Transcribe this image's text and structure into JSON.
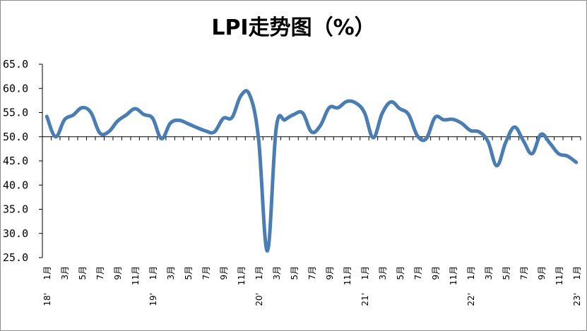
{
  "chart_data": {
    "type": "line",
    "title": "LPI走势图（%）",
    "ylim": [
      25.0,
      65.0
    ],
    "yticks": [
      "65.0",
      "60.0",
      "55.0",
      "50.0",
      "45.0",
      "40.0",
      "35.0",
      "30.0",
      "25.0"
    ],
    "reference_line": 50.0,
    "grid": false,
    "legend": "none",
    "line_color": "#4a7eb2",
    "x": [
      "18'1月",
      "2月",
      "3月",
      "4月",
      "5月",
      "6月",
      "7月",
      "8月",
      "9月",
      "10月",
      "11月",
      "12月",
      "19'1月",
      "2月",
      "3月",
      "4月",
      "5月",
      "6月",
      "7月",
      "8月",
      "9月",
      "10月",
      "11月",
      "12月",
      "20'1月",
      "2月",
      "3月",
      "4月",
      "5月",
      "6月",
      "7月",
      "8月",
      "9月",
      "10月",
      "11月",
      "12月",
      "21'1月",
      "2月",
      "3月",
      "4月",
      "5月",
      "6月",
      "7月",
      "8月",
      "9月",
      "10月",
      "11月",
      "12月",
      "22'1月",
      "2月",
      "3月",
      "4月",
      "5月",
      "6月",
      "7月",
      "8月",
      "9月",
      "10月",
      "11月",
      "12月",
      "23'1月"
    ],
    "xticks": [
      {
        "index": 0,
        "label": "1月",
        "year": "18'"
      },
      {
        "index": 2,
        "label": "3月"
      },
      {
        "index": 4,
        "label": "5月"
      },
      {
        "index": 6,
        "label": "7月"
      },
      {
        "index": 8,
        "label": "9月"
      },
      {
        "index": 10,
        "label": "11月"
      },
      {
        "index": 12,
        "label": "1月",
        "year": "19'"
      },
      {
        "index": 14,
        "label": "3月"
      },
      {
        "index": 16,
        "label": "5月"
      },
      {
        "index": 18,
        "label": "7月"
      },
      {
        "index": 20,
        "label": "9月"
      },
      {
        "index": 22,
        "label": "11月"
      },
      {
        "index": 24,
        "label": "1月",
        "year": "20'"
      },
      {
        "index": 26,
        "label": "3月"
      },
      {
        "index": 28,
        "label": "5月"
      },
      {
        "index": 30,
        "label": "7月"
      },
      {
        "index": 32,
        "label": "9月"
      },
      {
        "index": 34,
        "label": "11月"
      },
      {
        "index": 36,
        "label": "1月",
        "year": "21'"
      },
      {
        "index": 38,
        "label": "3月"
      },
      {
        "index": 40,
        "label": "5月"
      },
      {
        "index": 42,
        "label": "7月"
      },
      {
        "index": 44,
        "label": "9月"
      },
      {
        "index": 46,
        "label": "11月"
      },
      {
        "index": 48,
        "label": "1月",
        "year": "22'"
      },
      {
        "index": 50,
        "label": "3月"
      },
      {
        "index": 52,
        "label": "5月"
      },
      {
        "index": 54,
        "label": "7月"
      },
      {
        "index": 56,
        "label": "9月"
      },
      {
        "index": 58,
        "label": "11月"
      },
      {
        "index": 60,
        "label": "1月",
        "year": "23'"
      }
    ],
    "series": [
      {
        "values": [
          54.2,
          50.0,
          53.5,
          54.5,
          56.0,
          55.0,
          50.8,
          51.0,
          53.2,
          54.5,
          55.8,
          54.6,
          53.8,
          49.6,
          52.8,
          53.4,
          52.7,
          51.9,
          51.2,
          51.0,
          53.8,
          54.0,
          58.5,
          58.6,
          49.5,
          26.4,
          51.8,
          53.5,
          54.6,
          54.9,
          51.0,
          52.3,
          56.0,
          56.0,
          57.3,
          57.0,
          55.0,
          49.8,
          54.8,
          57.2,
          55.8,
          54.6,
          50.2,
          49.6,
          54.0,
          53.5,
          53.6,
          52.8,
          51.3,
          51.0,
          49.0,
          44.0,
          48.8,
          52.0,
          49.2,
          46.5,
          50.5,
          48.7,
          46.5,
          46.0,
          44.7
        ]
      }
    ]
  }
}
